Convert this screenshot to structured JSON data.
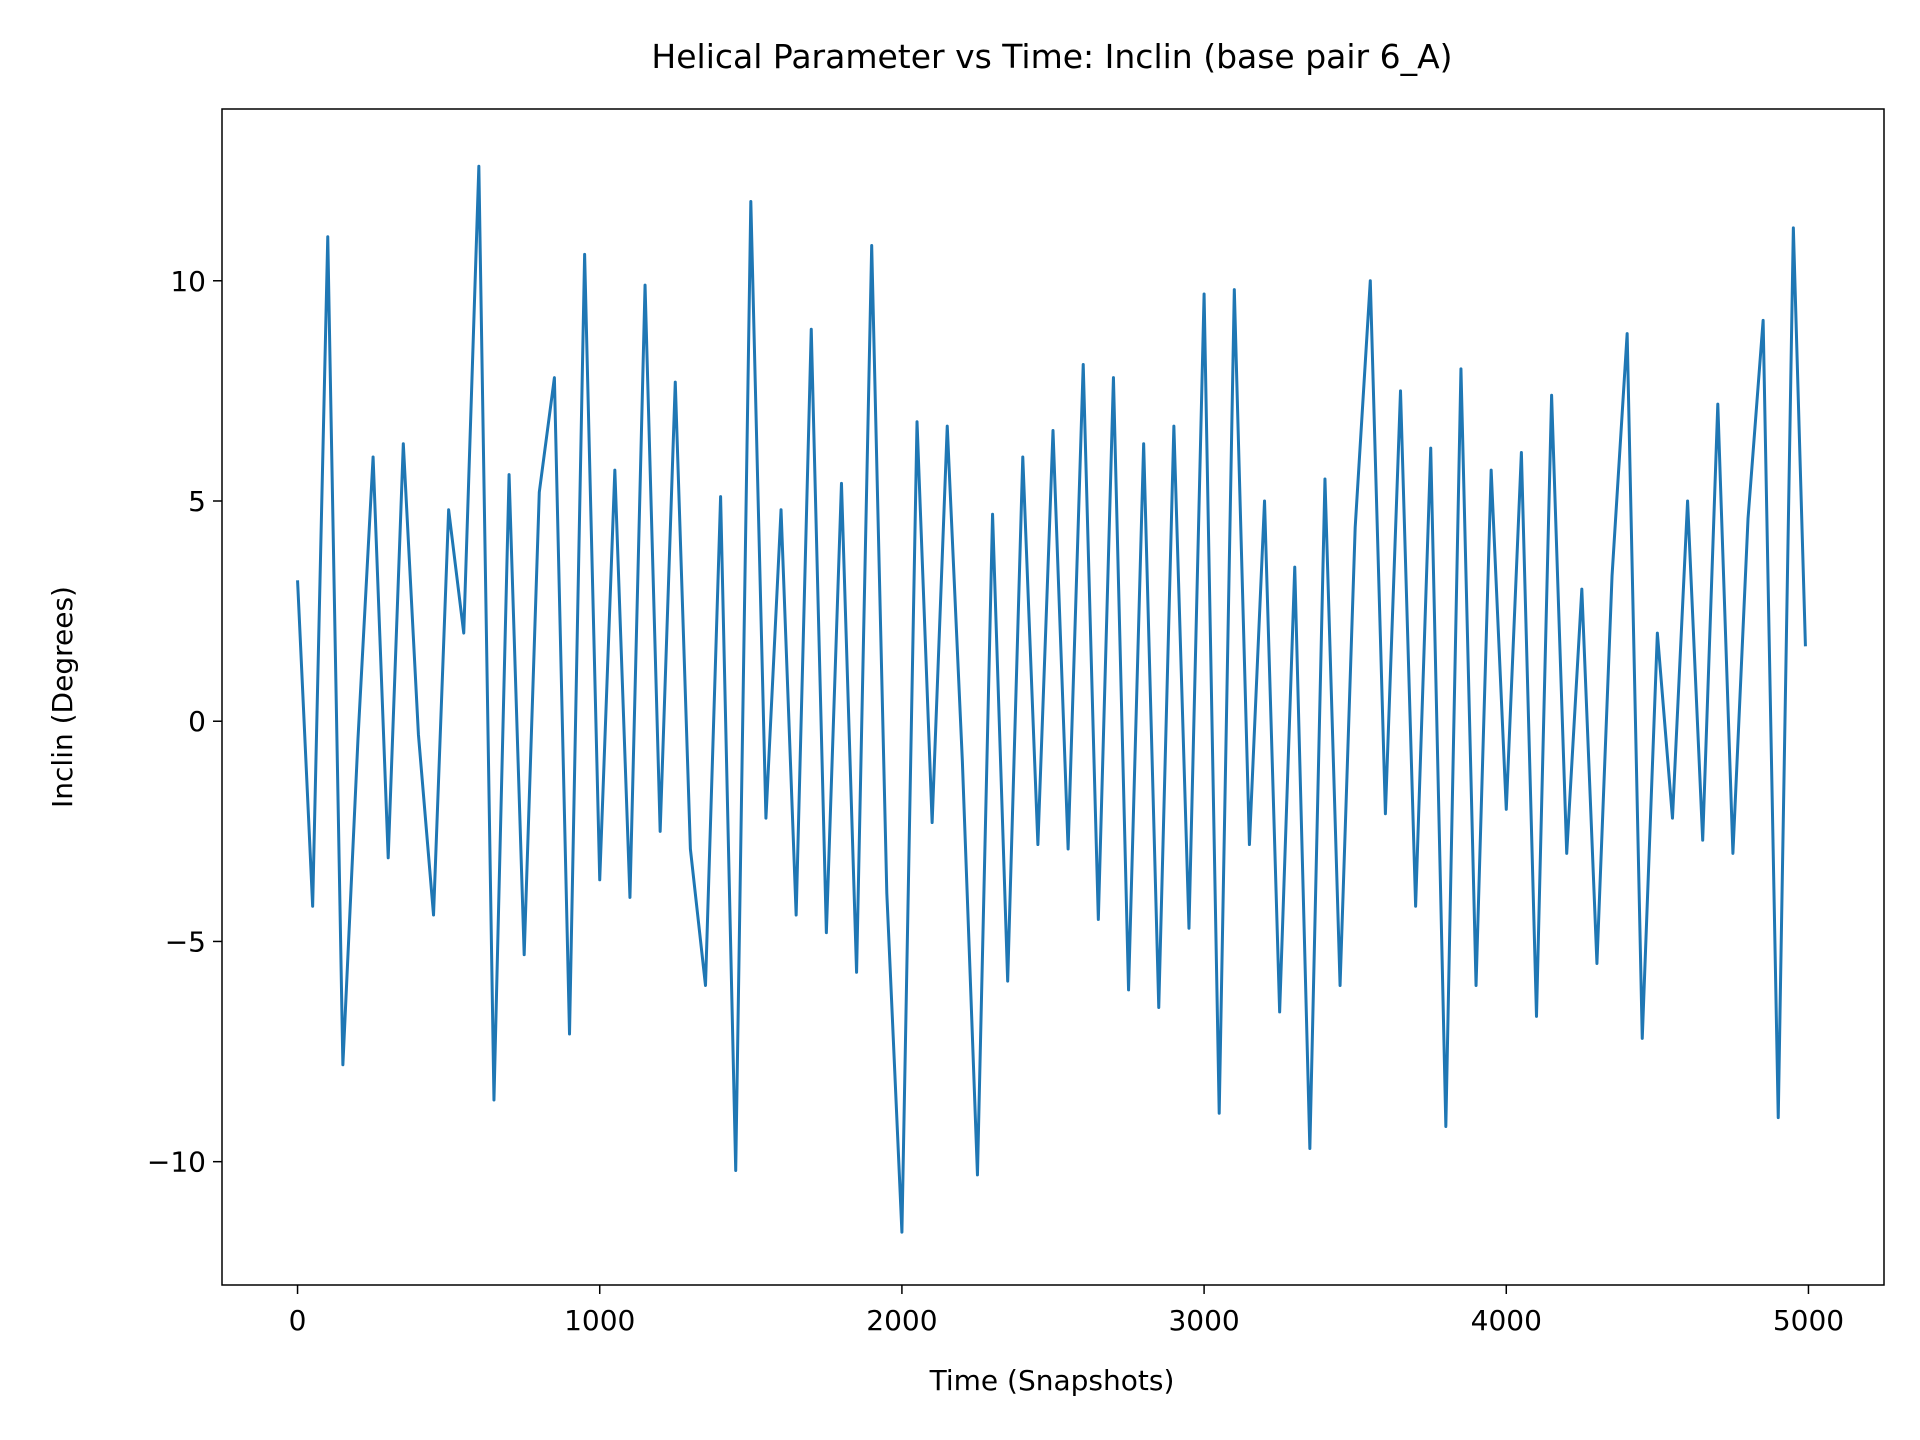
{
  "chart_data": {
    "type": "line",
    "title": "Helical Parameter vs Time: Inclin (base pair  6_A)",
    "x_label": "Time (Snapshots)",
    "y_label": "Inclin (Degrees)",
    "x": [
      0,
      50,
      100,
      150,
      200,
      250,
      300,
      350,
      400,
      450,
      500,
      550,
      600,
      650,
      700,
      750,
      800,
      850,
      900,
      950,
      1000,
      1050,
      1100,
      1150,
      1200,
      1250,
      1300,
      1350,
      1400,
      1450,
      1500,
      1550,
      1600,
      1650,
      1700,
      1750,
      1800,
      1850,
      1900,
      1950,
      2000,
      2050,
      2100,
      2150,
      2200,
      2250,
      2300,
      2350,
      2400,
      2450,
      2500,
      2550,
      2600,
      2650,
      2700,
      2750,
      2800,
      2850,
      2900,
      2950,
      3000,
      3050,
      3100,
      3150,
      3200,
      3250,
      3300,
      3350,
      3400,
      3450,
      3500,
      3550,
      3600,
      3650,
      3700,
      3750,
      3800,
      3850,
      3900,
      3950,
      4000,
      4050,
      4100,
      4150,
      4200,
      4250,
      4300,
      4350,
      4400,
      4450,
      4500,
      4550,
      4600,
      4650,
      4700,
      4750,
      4800,
      4850,
      4900,
      4950,
      4990
    ],
    "series": [
      {
        "color": "#1f77b4",
        "values": [
          3.2,
          -4.2,
          11.0,
          -7.8,
          -0.4,
          6.0,
          -3.1,
          6.3,
          -0.3,
          -4.4,
          4.8,
          2.0,
          12.6,
          -8.6,
          5.6,
          -5.3,
          5.2,
          7.8,
          -7.1,
          10.6,
          -3.6,
          5.7,
          -4.0,
          9.9,
          -2.5,
          7.7,
          -2.9,
          -6.0,
          5.1,
          -10.2,
          11.8,
          -2.2,
          4.8,
          -4.4,
          8.9,
          -4.8,
          5.4,
          -5.7,
          10.8,
          -3.9,
          -11.6,
          6.8,
          -2.3,
          6.7,
          -0.9,
          -10.3,
          4.7,
          -5.9,
          6.0,
          -2.8,
          6.6,
          -2.9,
          8.1,
          -4.5,
          7.8,
          -6.1,
          6.3,
          -6.5,
          6.7,
          -4.7,
          9.7,
          -8.9,
          9.8,
          -2.8,
          5.0,
          -6.6,
          3.5,
          -9.7,
          5.5,
          -6.0,
          4.4,
          10.0,
          -2.1,
          7.5,
          -4.2,
          6.2,
          -9.2,
          8.0,
          -6.0,
          5.7,
          -2.0,
          6.1,
          -6.7,
          7.4,
          -3.0,
          3.0,
          -5.5,
          3.3,
          8.8,
          -7.2,
          2.0,
          -2.2,
          5.0,
          -2.7,
          7.2,
          -3.0,
          4.6,
          9.1,
          -9.0,
          11.2,
          1.7
        ]
      }
    ],
    "xlim": [
      -250,
      5250
    ],
    "ylim": [
      -12.8,
      13.9
    ],
    "xticks": [
      0,
      1000,
      2000,
      3000,
      4000,
      5000
    ],
    "yticks": [
      {
        "value": -10,
        "label": "−10"
      },
      {
        "value": -5,
        "label": "−5"
      },
      0,
      5,
      10
    ]
  }
}
